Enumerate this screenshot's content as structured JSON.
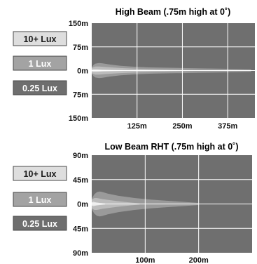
{
  "chart_data": [
    {
      "type": "area",
      "title": "High Beam (.75m high at 0˚)",
      "x_ticks": [
        "125m",
        "250m",
        "375m"
      ],
      "x_tick_values": [
        125,
        250,
        375
      ],
      "xlim": [
        0,
        450
      ],
      "y_ticks": [
        "150m",
        "75m",
        "0m",
        "75m",
        "150m"
      ],
      "y_tick_values": [
        150,
        75,
        0,
        -75,
        -150
      ],
      "ylim": [
        -150,
        150
      ],
      "grid": true,
      "legend": [
        {
          "label": "10+ Lux",
          "color": "#dedede",
          "text_color": "#1a1a1a"
        },
        {
          "label": "1 Lux",
          "color": "#a3a3a3",
          "text_color": "#ffffff"
        },
        {
          "label": "0.25 Lux",
          "color": "#6e6e6e",
          "text_color": "#ffffff"
        }
      ],
      "series": [
        {
          "name": "0.25 Lux",
          "color": "#9a9a9a",
          "x": [
            0,
            5,
            10,
            20,
            30,
            50,
            80,
            120,
            160,
            200,
            250,
            300,
            350,
            400,
            440
          ],
          "half_width": [
            10,
            18,
            22,
            24,
            23,
            19,
            15,
            12,
            10,
            9,
            8,
            7,
            6,
            5,
            4
          ]
        },
        {
          "name": "1 Lux",
          "color": "#bcbcbc",
          "x": [
            0,
            5,
            10,
            20,
            40,
            80,
            120,
            180,
            250,
            300
          ],
          "half_width": [
            8,
            11,
            13,
            13,
            11,
            8,
            6,
            4,
            2,
            1
          ]
        },
        {
          "name": "10+ Lux",
          "color": "#e8e8e8",
          "x": [
            0,
            5,
            15,
            30,
            60,
            100
          ],
          "half_width": [
            3,
            4,
            4,
            3,
            2,
            1
          ]
        }
      ]
    },
    {
      "type": "area",
      "title": "Low Beam RHT (.75m high at 0˚)",
      "x_ticks": [
        "100m",
        "200m"
      ],
      "x_tick_values": [
        100,
        200
      ],
      "xlim": [
        0,
        300
      ],
      "y_ticks": [
        "90m",
        "45m",
        "0m",
        "45m",
        "90m"
      ],
      "y_tick_values": [
        90,
        45,
        0,
        -45,
        -90
      ],
      "ylim": [
        -90,
        90
      ],
      "grid": true,
      "legend": [
        {
          "label": "10+ Lux",
          "color": "#dedede",
          "text_color": "#1a1a1a"
        },
        {
          "label": "1 Lux",
          "color": "#a3a3a3",
          "text_color": "#ffffff"
        },
        {
          "label": "0.25 Lux",
          "color": "#6e6e6e",
          "text_color": "#ffffff"
        }
      ],
      "series": [
        {
          "name": "0.25 Lux",
          "color": "#9a9a9a",
          "x": [
            0,
            5,
            10,
            15,
            20,
            30,
            50,
            80,
            110,
            140,
            170,
            200
          ],
          "half_width": [
            10,
            18,
            22,
            23,
            22,
            19,
            15,
            11,
            8,
            6,
            4,
            2
          ]
        },
        {
          "name": "1 Lux",
          "color": "#bcbcbc",
          "x": [
            0,
            5,
            10,
            20,
            35,
            50,
            70,
            90
          ],
          "half_width": [
            8,
            11,
            11,
            9,
            7,
            5,
            3,
            1
          ]
        },
        {
          "name": "10+ Lux",
          "color": "#e8e8e8",
          "x": [
            0,
            3,
            8,
            15,
            25
          ],
          "half_width": [
            3,
            4,
            3,
            2,
            1
          ]
        }
      ]
    }
  ]
}
